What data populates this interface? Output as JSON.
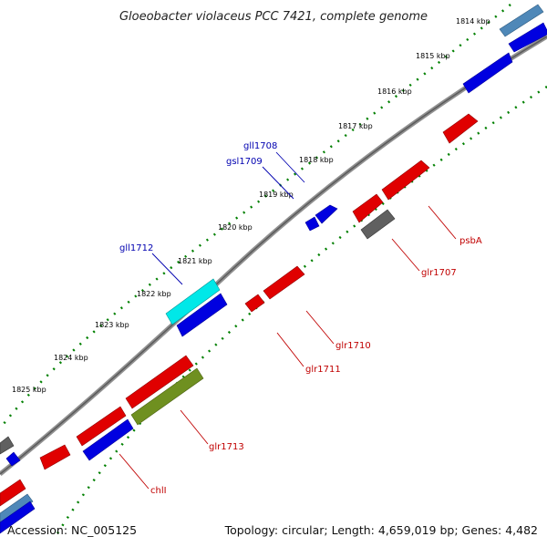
{
  "title": "Gloeobacter violaceus PCC 7421, complete genome",
  "footer": {
    "accession": "Accession: NC_005125",
    "summary": "Topology: circular; Length: 4,659,019 bp; Genes: 4,482"
  },
  "ruler": {
    "unit": "kbp",
    "ticks": [
      "1814 kbp",
      "1815 kbp",
      "1816 kbp",
      "1817 kbp",
      "1818 kbp",
      "1819 kbp",
      "1820 kbp",
      "1821 kbp",
      "1822 kbp",
      "1823 kbp",
      "1824 kbp",
      "1825 kbp"
    ]
  },
  "gene_labels": {
    "top": [
      "gll1708",
      "gsl1709",
      "gll1712"
    ],
    "bottom": [
      "psbA",
      "glr1707",
      "glr1710",
      "glr1711",
      "glr1713",
      "chlI"
    ]
  },
  "colors": {
    "forward_gene": "#e00000",
    "reverse_gene": "#0000e0",
    "gray_gene": "#606060",
    "cyan_gene": "#00e8e8",
    "olive_gene": "#6f9020",
    "steel_gene": "#4f88b8",
    "backbone": "#808080",
    "tick_marks": "#008000",
    "top_label": "#0000b0",
    "bottom_label": "#c00000"
  }
}
